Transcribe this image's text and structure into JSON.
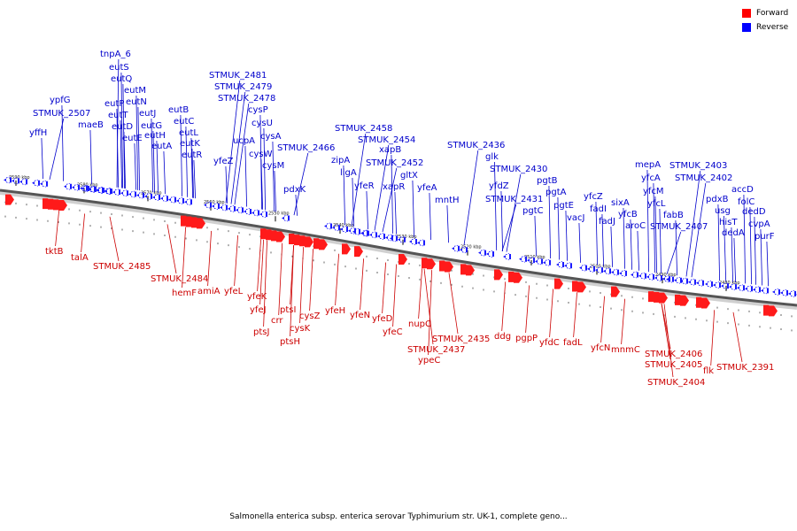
{
  "legend": {
    "forward_label": "Forward",
    "reverse_label": "Reverse",
    "forward_color": "#ff0000",
    "reverse_color": "#0000ff"
  },
  "caption": "Salmonella enterica subsp. enterica serovar Typhimurium str. UK-1, complete geno...",
  "ticks": [
    "2590 kbp",
    "2580 kbp",
    "2570 kbp",
    "2560 kbp",
    "2550 kbp",
    "2540 kbp",
    "2530 kbp",
    "2520 kbp",
    "2510 kbp",
    "2500 kbp",
    "2490 kbp",
    "2480 kbp"
  ],
  "reverse_genes": [
    "tnpA_6",
    "eutS",
    "eutQ",
    "eutM",
    "eutP",
    "eutN",
    "eutT",
    "eutJ",
    "eutD",
    "eutG",
    "eutE",
    "eutH",
    "eutB",
    "eutC",
    "eutA",
    "eutL",
    "eutK",
    "eutR",
    "maeB",
    "ypfG",
    "STMUK_2507",
    "yffH",
    "STMUK_2481",
    "STMUK_2479",
    "STMUK_2478",
    "cysP",
    "cysU",
    "ucpA",
    "cysA",
    "cysW",
    "yfeZ",
    "cysM",
    "STMUK_2466",
    "pdxK",
    "STMUK_2458",
    "STMUK_2454",
    "zipA",
    "xapB",
    "ligA",
    "STMUK_2452",
    "yfeR",
    "gltX",
    "xapR",
    "yfeA",
    "mntH",
    "STMUK_2436",
    "glk",
    "STMUK_2430",
    "yfdZ",
    "STMUK_2431",
    "pgtB",
    "pgtC",
    "pgtA",
    "pgtE",
    "vacJ",
    "yfcZ",
    "fadI",
    "fadJ",
    "sixA",
    "yfcB",
    "aroC",
    "mepA",
    "yfcA",
    "yfcM",
    "yfcL",
    "STMUK_2403",
    "STMUK_2402",
    "fabB",
    "STMUK_2407",
    "pdxB",
    "accD",
    "usg",
    "folC",
    "hisT",
    "dedD",
    "dedA",
    "cvpA",
    "purF"
  ],
  "forward_genes": [
    "tktB",
    "talA",
    "STMUK_2485",
    "STMUK_2484",
    "hemF",
    "amiA",
    "yfeL",
    "yfeK",
    "yfeJ",
    "ptsJ",
    "crr",
    "ptsI",
    "ptsH",
    "cysK",
    "cysZ",
    "yfeH",
    "yfeN",
    "yfeD",
    "yfeC",
    "nupC",
    "STMUK_2437",
    "ypeC",
    "STMUK_2435",
    "ddg",
    "pgpP",
    "yfdC",
    "fadL",
    "yfcN",
    "mnmC",
    "STMUK_2406",
    "STMUK_2405",
    "STMUK_2404",
    "flk",
    "STMUK_2391"
  ]
}
